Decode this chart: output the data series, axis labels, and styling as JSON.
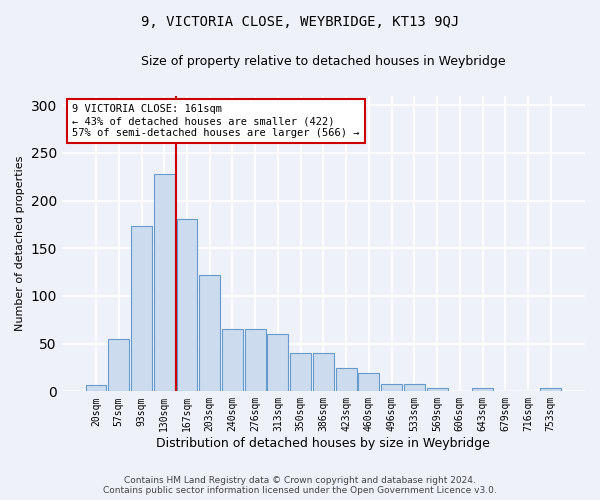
{
  "title": "9, VICTORIA CLOSE, WEYBRIDGE, KT13 9QJ",
  "subtitle": "Size of property relative to detached houses in Weybridge",
  "xlabel": "Distribution of detached houses by size in Weybridge",
  "ylabel": "Number of detached properties",
  "bar_color": "#ccdcee",
  "bar_edge_color": "#6699cc",
  "categories": [
    "20sqm",
    "57sqm",
    "93sqm",
    "130sqm",
    "167sqm",
    "203sqm",
    "240sqm",
    "276sqm",
    "313sqm",
    "350sqm",
    "386sqm",
    "423sqm",
    "460sqm",
    "496sqm",
    "533sqm",
    "569sqm",
    "606sqm",
    "643sqm",
    "679sqm",
    "716sqm",
    "753sqm"
  ],
  "values": [
    7,
    55,
    173,
    228,
    181,
    122,
    65,
    65,
    60,
    40,
    40,
    24,
    19,
    8,
    8,
    3,
    0,
    4,
    0,
    0,
    3
  ],
  "vline_color": "#cc0000",
  "vline_index": 3.5,
  "annotation_title": "9 VICTORIA CLOSE: 161sqm",
  "annotation_line1": "← 43% of detached houses are smaller (422)",
  "annotation_line2": "57% of semi-detached houses are larger (566) →",
  "annotation_box_color": "#ffffff",
  "annotation_box_edge": "#cc0000",
  "ylim": [
    0,
    310
  ],
  "yticks": [
    0,
    50,
    100,
    150,
    200,
    250,
    300
  ],
  "footer_line1": "Contains HM Land Registry data © Crown copyright and database right 2024.",
  "footer_line2": "Contains public sector information licensed under the Open Government Licence v3.0.",
  "background_color": "#eef2f8",
  "grid_color": "#ffffff"
}
